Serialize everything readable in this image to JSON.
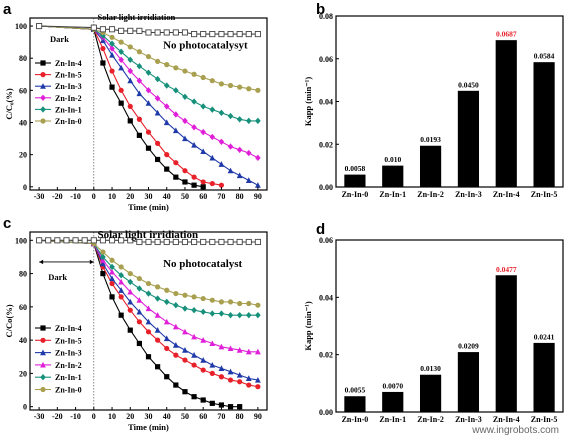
{
  "watermark": "www.ingrobots.com",
  "highlight_color": "#e8202a",
  "chart_data": [
    {
      "id": "a",
      "panel_label": "a",
      "type": "line",
      "xlabel": "Time (min)",
      "ylabel": "C/C₀(%)",
      "xlim": [
        -35,
        95
      ],
      "ylim": [
        -2,
        105
      ],
      "xticks": [
        -30,
        -20,
        -10,
        0,
        10,
        20,
        30,
        40,
        50,
        60,
        70,
        80,
        90
      ],
      "yticks": [
        0,
        20,
        40,
        60,
        80,
        100
      ],
      "annotations": {
        "light": "Solar light irridiation",
        "dark": "Dark",
        "nocat": "No photocatalysyt"
      },
      "legend_position": "upper-left",
      "series": [
        {
          "name": "Zn-In-4",
          "color": "#000000",
          "marker": "square",
          "x": [
            -30,
            0,
            5,
            10,
            15,
            20,
            25,
            30,
            35,
            40,
            45,
            50,
            55,
            60
          ],
          "y": [
            100,
            98,
            77,
            62,
            52,
            41,
            32,
            24,
            17,
            11,
            6,
            3,
            1,
            0
          ]
        },
        {
          "name": "Zn-In-5",
          "color": "#e8202a",
          "marker": "circle",
          "x": [
            -30,
            0,
            5,
            10,
            15,
            20,
            25,
            30,
            35,
            40,
            45,
            50,
            55,
            60,
            65,
            70
          ],
          "y": [
            100,
            98,
            86,
            72,
            60,
            50,
            42,
            34,
            27,
            20,
            15,
            10,
            6,
            3,
            2,
            1
          ]
        },
        {
          "name": "Zn-In-3",
          "color": "#1f3aa8",
          "marker": "triangle",
          "x": [
            -30,
            0,
            5,
            10,
            15,
            20,
            25,
            30,
            35,
            40,
            45,
            50,
            55,
            60,
            65,
            70,
            75,
            80,
            85,
            90
          ],
          "y": [
            100,
            98,
            91,
            82,
            74,
            66,
            58,
            52,
            46,
            40,
            35,
            30,
            26,
            22,
            18,
            14,
            10,
            7,
            4,
            1
          ]
        },
        {
          "name": "Zn-In-2",
          "color": "#e020d8",
          "marker": "diamond",
          "x": [
            -30,
            0,
            5,
            10,
            15,
            20,
            25,
            30,
            35,
            40,
            45,
            50,
            55,
            60,
            65,
            70,
            75,
            80,
            85,
            90
          ],
          "y": [
            100,
            98,
            93,
            86,
            79,
            72,
            66,
            60,
            55,
            50,
            45,
            41,
            37,
            34,
            31,
            28,
            25,
            23,
            21,
            18
          ]
        },
        {
          "name": "Zn-In-1",
          "color": "#16907a",
          "marker": "diamond",
          "x": [
            -30,
            0,
            5,
            10,
            15,
            20,
            25,
            30,
            35,
            40,
            45,
            50,
            55,
            60,
            65,
            70,
            75,
            80,
            85,
            90
          ],
          "y": [
            100,
            98,
            94,
            89,
            84,
            79,
            75,
            71,
            67,
            63,
            60,
            56,
            53,
            50,
            48,
            46,
            44,
            42,
            41,
            41
          ]
        },
        {
          "name": "Zn-In-0",
          "color": "#a8a050",
          "marker": "circle",
          "x": [
            -30,
            0,
            5,
            10,
            15,
            20,
            25,
            30,
            35,
            40,
            45,
            50,
            55,
            60,
            65,
            70,
            75,
            80,
            85,
            90
          ],
          "y": [
            100,
            98,
            96,
            93,
            90,
            87,
            84,
            81,
            78,
            76,
            74,
            72,
            70,
            68,
            66,
            64,
            63,
            62,
            61,
            60
          ]
        },
        {
          "name": "No photocatalysyt",
          "color": "#444444",
          "marker": "square-open",
          "in_legend": false,
          "x": [
            -30,
            0,
            5,
            10,
            15,
            20,
            25,
            30,
            35,
            40,
            45,
            50,
            55,
            60,
            65,
            70,
            75,
            80,
            85,
            90
          ],
          "y": [
            100,
            99,
            98,
            98,
            97,
            97,
            97,
            96,
            96,
            96,
            96,
            96,
            95,
            95,
            95,
            95,
            95,
            95,
            95,
            95
          ]
        }
      ]
    },
    {
      "id": "b",
      "panel_label": "b",
      "type": "bar",
      "xlabel": "",
      "ylabel": "Kapp (min⁻¹)",
      "ylim": [
        0,
        0.08
      ],
      "yticks": [
        0.0,
        0.02,
        0.04,
        0.06,
        0.08
      ],
      "ytick_labels": [
        "0.00",
        "0.02",
        "0.04",
        "0.06",
        "0.08"
      ],
      "categories": [
        "Zn-In-0",
        "Zn-In-1",
        "Zn-In-2",
        "Zn-In-3",
        "Zn-In-4",
        "Zn-In-5"
      ],
      "values": [
        0.0058,
        0.01,
        0.0193,
        0.045,
        0.0687,
        0.0584
      ],
      "value_labels": [
        "0.0058",
        "0.010",
        "0.0193",
        "0.0450",
        "0.0687",
        "0.0584"
      ],
      "highlight_index": 4
    },
    {
      "id": "c",
      "panel_label": "c",
      "type": "line",
      "xlabel": "Time (min)",
      "ylabel": "C/Co(%)",
      "xlim": [
        -35,
        95
      ],
      "ylim": [
        -2,
        105
      ],
      "xticks": [
        -30,
        -20,
        -10,
        0,
        10,
        20,
        30,
        40,
        50,
        60,
        70,
        80,
        90
      ],
      "yticks": [
        0,
        20,
        40,
        60,
        80,
        100
      ],
      "annotations": {
        "light": "Solar light irridiation",
        "dark": "Dark",
        "nocat": "No photocatalyst"
      },
      "legend_position": "lower-left",
      "series": [
        {
          "name": "Zn-In-4",
          "color": "#000000",
          "marker": "square",
          "x": [
            -30,
            0,
            5,
            10,
            15,
            20,
            25,
            30,
            35,
            40,
            45,
            50,
            55,
            60,
            65,
            70,
            75,
            80
          ],
          "y": [
            100,
            98,
            80,
            66,
            55,
            46,
            38,
            30,
            24,
            18,
            13,
            9,
            6,
            4,
            2,
            1,
            0,
            0
          ]
        },
        {
          "name": "Zn-In-5",
          "color": "#e8202a",
          "marker": "circle",
          "x": [
            -30,
            0,
            5,
            10,
            15,
            20,
            25,
            30,
            35,
            40,
            45,
            50,
            55,
            60,
            65,
            70,
            75,
            80,
            85,
            90
          ],
          "y": [
            100,
            98,
            84,
            74,
            66,
            58,
            51,
            45,
            40,
            35,
            31,
            28,
            25,
            22,
            20,
            18,
            16,
            15,
            13,
            12
          ]
        },
        {
          "name": "Zn-In-3",
          "color": "#1f3aa8",
          "marker": "triangle",
          "x": [
            -30,
            0,
            5,
            10,
            15,
            20,
            25,
            30,
            35,
            40,
            45,
            50,
            55,
            60,
            65,
            70,
            75,
            80,
            85,
            90
          ],
          "y": [
            100,
            98,
            86,
            77,
            70,
            63,
            57,
            51,
            46,
            41,
            37,
            34,
            31,
            28,
            25,
            23,
            21,
            19,
            17,
            16
          ]
        },
        {
          "name": "Zn-In-2",
          "color": "#e020d8",
          "marker": "triangle",
          "x": [
            -30,
            0,
            5,
            10,
            15,
            20,
            25,
            30,
            35,
            40,
            45,
            50,
            55,
            60,
            65,
            70,
            75,
            80,
            85,
            90
          ],
          "y": [
            100,
            98,
            88,
            81,
            75,
            69,
            64,
            59,
            55,
            51,
            48,
            45,
            42,
            40,
            38,
            36,
            35,
            34,
            33,
            33
          ]
        },
        {
          "name": "Zn-In-1",
          "color": "#16907a",
          "marker": "diamond",
          "x": [
            -30,
            0,
            5,
            10,
            15,
            20,
            25,
            30,
            35,
            40,
            45,
            50,
            55,
            60,
            65,
            70,
            75,
            80,
            85,
            90
          ],
          "y": [
            100,
            98,
            90,
            84,
            79,
            75,
            71,
            68,
            65,
            63,
            61,
            59,
            58,
            57,
            56,
            56,
            55,
            55,
            55,
            55
          ]
        },
        {
          "name": "Zn-In-0",
          "color": "#a8a050",
          "marker": "circle",
          "x": [
            -30,
            0,
            5,
            10,
            15,
            20,
            25,
            30,
            35,
            40,
            45,
            50,
            55,
            60,
            65,
            70,
            75,
            80,
            85,
            90
          ],
          "y": [
            100,
            98,
            93,
            88,
            84,
            80,
            77,
            74,
            72,
            70,
            68,
            67,
            66,
            65,
            64,
            63,
            63,
            62,
            62,
            61
          ]
        },
        {
          "name": "No photocatalyst",
          "color": "#444444",
          "marker": "square-open",
          "in_legend": false,
          "x": [
            -30,
            -25,
            -20,
            -15,
            -10,
            -5,
            0,
            5,
            10,
            15,
            20,
            25,
            30,
            35,
            40,
            45,
            50,
            55,
            60,
            65,
            70,
            75,
            80,
            85,
            90
          ],
          "y": [
            100,
            100,
            100,
            100,
            100,
            100,
            100,
            100,
            100,
            100,
            100,
            99,
            99,
            99,
            99,
            99,
            99,
            99,
            99,
            99,
            99,
            99,
            99,
            99,
            99
          ]
        }
      ]
    },
    {
      "id": "d",
      "panel_label": "d",
      "type": "bar",
      "xlabel": "",
      "ylabel": "Kapp (min⁻¹)",
      "ylim": [
        0,
        0.06
      ],
      "yticks": [
        0.0,
        0.02,
        0.04,
        0.06
      ],
      "ytick_labels": [
        "0.00",
        "0.02",
        "0.04",
        "0.06"
      ],
      "categories": [
        "Zn-In-0",
        "Zn-In-1",
        "Zn-In-2",
        "Zn-In-3",
        "Zn-In-4",
        "Zn-In-5"
      ],
      "values": [
        0.0055,
        0.007,
        0.013,
        0.0209,
        0.0477,
        0.0241
      ],
      "value_labels": [
        "0.0055",
        "0.0070",
        "0.0130",
        "0.0209",
        "0.0477",
        "0.0241"
      ],
      "highlight_index": 4
    }
  ]
}
